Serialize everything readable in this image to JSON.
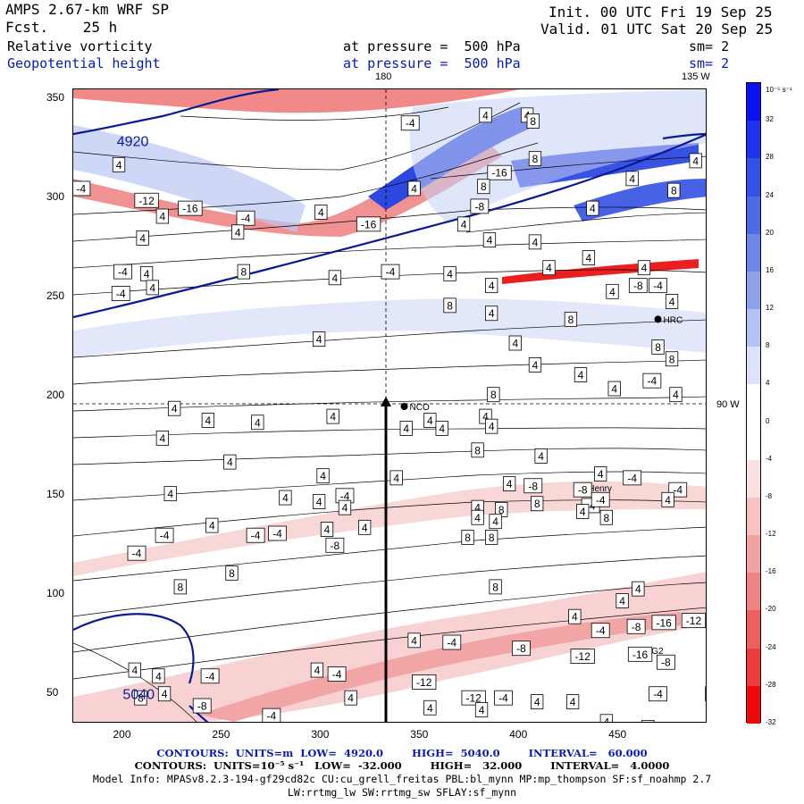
{
  "header": {
    "model": "AMPS 2.67-km WRF SP",
    "forecast": "Fcst.    25 h",
    "init": "Init. 00 UTC Fri 19 Sep 25",
    "valid": "Valid. 01 UTC Sat 20 Sep 25",
    "field1_name": "Relative vorticity",
    "field1_level": "at pressure =  500 hPa",
    "field1_smooth": "sm= 2",
    "field2_name": "Geopotential height",
    "field2_level": "at pressure =  500 hPa",
    "field2_smooth": "sm= 2"
  },
  "map": {
    "lon_label_180": "180",
    "lon_label_135": "135 W",
    "lon_label_90": "90 W",
    "stations": [
      {
        "name": "NCO",
        "x": 342,
        "y": 195
      },
      {
        "name": "Henry",
        "x": 432,
        "y": 154
      },
      {
        "name": "HRC",
        "x": 470,
        "y": 239
      },
      {
        "name": "AG2",
        "x": 461,
        "y": 72
      }
    ],
    "contour_labels": [
      {
        "t": "4",
        "x": 198,
        "y": 317
      },
      {
        "t": "-4",
        "x": 179,
        "y": 305
      },
      {
        "t": "-12",
        "x": 212,
        "y": 299
      },
      {
        "t": "-16",
        "x": 234,
        "y": 295
      },
      {
        "t": "-4",
        "x": 262,
        "y": 290
      },
      {
        "t": "-16",
        "x": 324,
        "y": 287
      },
      {
        "t": "-8",
        "x": 380,
        "y": 296
      },
      {
        "t": "-16",
        "x": 390,
        "y": 313
      },
      {
        "t": "8",
        "x": 408,
        "y": 320
      },
      {
        "t": "-4",
        "x": 345,
        "y": 338
      },
      {
        "t": "4",
        "x": 383,
        "y": 342
      },
      {
        "t": "4",
        "x": 404,
        "y": 342
      },
      {
        "t": "8",
        "x": 407,
        "y": 339
      },
      {
        "t": "4",
        "x": 220,
        "y": 291
      },
      {
        "t": "4",
        "x": 258,
        "y": 283
      },
      {
        "t": "4",
        "x": 300,
        "y": 293
      },
      {
        "t": "4",
        "x": 347,
        "y": 305
      },
      {
        "t": "4",
        "x": 372,
        "y": 287
      },
      {
        "t": "8",
        "x": 382,
        "y": 306
      },
      {
        "t": "4",
        "x": 437,
        "y": 295
      },
      {
        "t": "4",
        "x": 457,
        "y": 310
      },
      {
        "t": "8",
        "x": 478,
        "y": 304
      },
      {
        "t": "4",
        "x": 489,
        "y": 319
      },
      {
        "t": "-4",
        "x": 200,
        "y": 263
      },
      {
        "t": "-4",
        "x": 199,
        "y": 252
      },
      {
        "t": "4",
        "x": 210,
        "y": 280
      },
      {
        "t": "4",
        "x": 212,
        "y": 262
      },
      {
        "t": "4",
        "x": 215,
        "y": 255
      },
      {
        "t": "8",
        "x": 261,
        "y": 263
      },
      {
        "t": "4",
        "x": 307,
        "y": 260
      },
      {
        "t": "-4",
        "x": 335,
        "y": 263
      },
      {
        "t": "4",
        "x": 365,
        "y": 262
      },
      {
        "t": "4",
        "x": 385,
        "y": 279
      },
      {
        "t": "4",
        "x": 408,
        "y": 278
      },
      {
        "t": "4",
        "x": 415,
        "y": 265
      },
      {
        "t": "4",
        "x": 435,
        "y": 270
      },
      {
        "t": "4",
        "x": 447,
        "y": 253
      },
      {
        "t": "4",
        "x": 463,
        "y": 265
      },
      {
        "t": "-8",
        "x": 460,
        "y": 256
      },
      {
        "t": "-4",
        "x": 470,
        "y": 256
      },
      {
        "t": "4",
        "x": 477,
        "y": 248
      },
      {
        "t": "8",
        "x": 365,
        "y": 246
      },
      {
        "t": "4",
        "x": 386,
        "y": 242
      },
      {
        "t": "4",
        "x": 386,
        "y": 256
      },
      {
        "t": "8",
        "x": 426,
        "y": 239
      },
      {
        "t": "4",
        "x": 299,
        "y": 229
      },
      {
        "t": "4",
        "x": 398,
        "y": 227
      },
      {
        "t": "8",
        "x": 470,
        "y": 225
      },
      {
        "t": "8",
        "x": 477,
        "y": 219
      },
      {
        "t": "4",
        "x": 408,
        "y": 216
      },
      {
        "t": "4",
        "x": 431,
        "y": 211
      },
      {
        "t": "4",
        "x": 448,
        "y": 204
      },
      {
        "t": "-4",
        "x": 467,
        "y": 208
      },
      {
        "t": "4",
        "x": 479,
        "y": 201
      },
      {
        "t": "8",
        "x": 387,
        "y": 201
      },
      {
        "t": "4",
        "x": 226,
        "y": 194
      },
      {
        "t": "4",
        "x": 243,
        "y": 188
      },
      {
        "t": "4",
        "x": 268,
        "y": 187
      },
      {
        "t": "4",
        "x": 306,
        "y": 190
      },
      {
        "t": "4",
        "x": 343,
        "y": 184
      },
      {
        "t": "4",
        "x": 355,
        "y": 188
      },
      {
        "t": "4",
        "x": 383,
        "y": 190
      },
      {
        "t": "4",
        "x": 361,
        "y": 184
      },
      {
        "t": "4",
        "x": 386,
        "y": 185
      },
      {
        "t": "4",
        "x": 220,
        "y": 179
      },
      {
        "t": "8",
        "x": 379,
        "y": 173
      },
      {
        "t": "4",
        "x": 411,
        "y": 170
      },
      {
        "t": "4",
        "x": 254,
        "y": 167
      },
      {
        "t": "4",
        "x": 301,
        "y": 160
      },
      {
        "t": "4",
        "x": 338,
        "y": 159
      },
      {
        "t": "4",
        "x": 395,
        "y": 156
      },
      {
        "t": "4",
        "x": 441,
        "y": 161
      },
      {
        "t": "-4",
        "x": 457,
        "y": 159
      },
      {
        "t": "-8",
        "x": 407,
        "y": 155
      },
      {
        "t": "-8",
        "x": 432,
        "y": 153
      },
      {
        "t": "-4",
        "x": 480,
        "y": 153
      },
      {
        "t": "4",
        "x": 224,
        "y": 151
      },
      {
        "t": "4",
        "x": 282,
        "y": 149
      },
      {
        "t": "-4",
        "x": 312,
        "y": 150
      },
      {
        "t": "-4",
        "x": 436,
        "y": 145
      },
      {
        "t": "-4",
        "x": 441,
        "y": 148
      },
      {
        "t": "8",
        "x": 409,
        "y": 146
      },
      {
        "t": "8",
        "x": 391,
        "y": 143
      },
      {
        "t": "4",
        "x": 312,
        "y": 144
      },
      {
        "t": "4",
        "x": 299,
        "y": 147
      },
      {
        "t": "4",
        "x": 432,
        "y": 142
      },
      {
        "t": "4",
        "x": 379,
        "y": 144
      },
      {
        "t": "4",
        "x": 475,
        "y": 148
      },
      {
        "t": "8",
        "x": 444,
        "y": 139
      },
      {
        "t": "4",
        "x": 379,
        "y": 139
      },
      {
        "t": "4",
        "x": 245,
        "y": 135
      },
      {
        "t": "4",
        "x": 303,
        "y": 133
      },
      {
        "t": "-4",
        "x": 278,
        "y": 131
      },
      {
        "t": "-4",
        "x": 221,
        "y": 130
      },
      {
        "t": "4",
        "x": 322,
        "y": 134
      },
      {
        "t": "-4",
        "x": 267,
        "y": 130
      },
      {
        "t": "4",
        "x": 388,
        "y": 137
      },
      {
        "t": "8",
        "x": 374,
        "y": 129
      },
      {
        "t": "8",
        "x": 386,
        "y": 129
      },
      {
        "t": "-8",
        "x": 307,
        "y": 125
      },
      {
        "t": "-4",
        "x": 207,
        "y": 121
      },
      {
        "t": "8",
        "x": 255,
        "y": 111
      },
      {
        "t": "8",
        "x": 229,
        "y": 104
      },
      {
        "t": "8",
        "x": 388,
        "y": 104
      },
      {
        "t": "4",
        "x": 452,
        "y": 97
      },
      {
        "t": "4",
        "x": 460,
        "y": 103
      },
      {
        "t": "4",
        "x": 428,
        "y": 89
      },
      {
        "t": "-4",
        "x": 441,
        "y": 82
      },
      {
        "t": "-8",
        "x": 459,
        "y": 84
      },
      {
        "t": "-16",
        "x": 473,
        "y": 86
      },
      {
        "t": "-12",
        "x": 488,
        "y": 87
      },
      {
        "t": "4",
        "x": 347,
        "y": 77
      },
      {
        "t": "-4",
        "x": 366,
        "y": 76
      },
      {
        "t": "-8",
        "x": 401,
        "y": 73
      },
      {
        "t": "-12",
        "x": 432,
        "y": 69
      },
      {
        "t": "-16",
        "x": 461,
        "y": 70
      },
      {
        "t": "-8",
        "x": 474,
        "y": 66
      },
      {
        "t": "4",
        "x": 206,
        "y": 62
      },
      {
        "t": "4",
        "x": 218,
        "y": 59
      },
      {
        "t": "-4",
        "x": 244,
        "y": 59
      },
      {
        "t": "4",
        "x": 298,
        "y": 62
      },
      {
        "t": "-4",
        "x": 308,
        "y": 60
      },
      {
        "t": "-12",
        "x": 352,
        "y": 56
      },
      {
        "t": "-12",
        "x": 377,
        "y": 48
      },
      {
        "t": "-4",
        "x": 392,
        "y": 48
      },
      {
        "t": "4",
        "x": 409,
        "y": 46
      },
      {
        "t": "4",
        "x": 427,
        "y": 46
      },
      {
        "t": "4",
        "x": 444,
        "y": 36
      },
      {
        "t": "-4",
        "x": 470,
        "y": 50
      },
      {
        "t": "4",
        "x": 497,
        "y": 50
      },
      {
        "t": "8",
        "x": 209,
        "y": 48
      },
      {
        "t": "4",
        "x": 221,
        "y": 50
      },
      {
        "t": "-8",
        "x": 240,
        "y": 44
      },
      {
        "t": "-4",
        "x": 275,
        "y": 39
      },
      {
        "t": "4",
        "x": 315,
        "y": 48
      },
      {
        "t": "4",
        "x": 355,
        "y": 43
      },
      {
        "t": "4",
        "x": 381,
        "y": 42
      },
      {
        "t": "4",
        "x": 465,
        "y": 33
      }
    ],
    "height_labels": [
      {
        "t": "5040",
        "x": 208,
        "y": 50
      },
      {
        "t": "4920",
        "x": 205,
        "y": 329
      }
    ]
  },
  "axes": {
    "x_ticks": [
      "200",
      "250",
      "300",
      "350",
      "400",
      "450"
    ],
    "y_ticks": [
      "50",
      "100",
      "150",
      "200",
      "250",
      "300",
      "350"
    ]
  },
  "colorbar": {
    "unit": "10⁻⁵ s⁻¹",
    "labels": [
      "32",
      "28",
      "24",
      "20",
      "16",
      "12",
      "8",
      "4",
      "0",
      "-4",
      "-8",
      "-12",
      "-16",
      "-20",
      "-24",
      "-28",
      "-32"
    ],
    "colors": [
      "#0a10f2",
      "#1e32f0",
      "#3450e6",
      "#4e6ae4",
      "#6e86e8",
      "#8ea2ec",
      "#b4c2f4",
      "#dce2fa",
      "#ffffff",
      "#ffffff",
      "#fbe2e2",
      "#f6c2c2",
      "#f2a2a2",
      "#f08484",
      "#ee6060",
      "#ee3c3c",
      "#f20808"
    ]
  },
  "footer": {
    "line1": "CONTOURS:  UNITS=m  LOW=  4920.0        HIGH=  5040.0        INTERVAL=   60.000",
    "line2": "CONTOURS:  UNITS=10⁻⁵ s⁻¹   LOW=  -32.000        HIGH=   32.000        INTERVAL=   4.0000",
    "line3": "Model Info: MPASv8.2.3-194-gf29cd82c CU:cu_grell_freitas PBL:bl_mynn MP:mp_thompson SF:sf_noahmp 2.7",
    "line4": "LW:rrtmg_lw SW:rrtmg_sw SFLAY:sf_mynn"
  }
}
